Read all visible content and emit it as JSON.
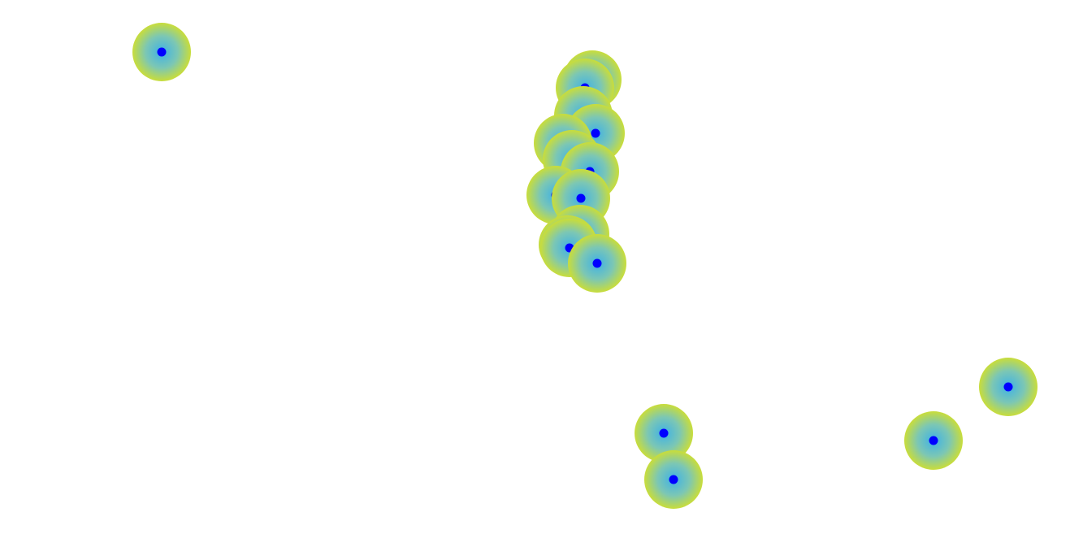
{
  "map": {
    "background": "#ffffff",
    "marker_style": {
      "halo_outer_color": "#c9dd3a",
      "halo_inner_color": "#3fb1e6",
      "dot_color": "#0000ff"
    },
    "markers": [
      {
        "id": "marker-1"
      },
      {
        "id": "marker-2"
      },
      {
        "id": "marker-3"
      },
      {
        "id": "marker-4"
      },
      {
        "id": "marker-5"
      },
      {
        "id": "marker-6"
      },
      {
        "id": "marker-7"
      },
      {
        "id": "marker-8"
      },
      {
        "id": "marker-9"
      },
      {
        "id": "marker-10"
      },
      {
        "id": "marker-11"
      },
      {
        "id": "marker-12"
      },
      {
        "id": "marker-13"
      },
      {
        "id": "marker-14"
      },
      {
        "id": "marker-15"
      },
      {
        "id": "marker-16"
      },
      {
        "id": "marker-17"
      },
      {
        "id": "marker-18"
      }
    ]
  }
}
